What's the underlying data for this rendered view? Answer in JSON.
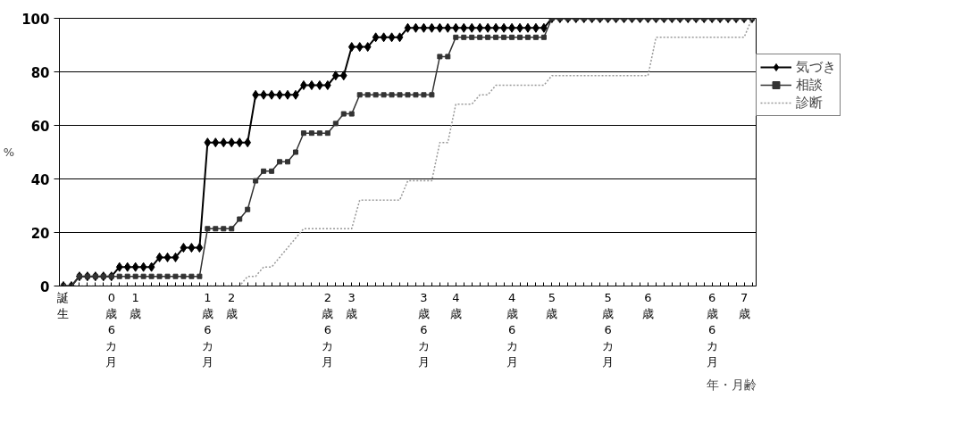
{
  "chart_data": {
    "type": "line",
    "ylabel": "%",
    "xlabel": "年・月齢",
    "categories": [
      "誕生",
      null,
      null,
      null,
      null,
      null,
      "0歳6カ月",
      null,
      null,
      "1歳",
      null,
      null,
      null,
      null,
      null,
      null,
      null,
      null,
      "1歳6カ月",
      null,
      null,
      "2歳",
      null,
      null,
      null,
      null,
      null,
      null,
      null,
      null,
      null,
      null,
      null,
      "2歳6カ月",
      null,
      null,
      "3歳",
      null,
      null,
      null,
      null,
      null,
      null,
      null,
      null,
      "3歳6カ月",
      null,
      null,
      null,
      "4歳",
      null,
      null,
      null,
      null,
      null,
      null,
      "4歳6カ月",
      null,
      null,
      null,
      null,
      "5歳",
      null,
      null,
      null,
      null,
      null,
      null,
      "5歳6カ月",
      null,
      null,
      null,
      null,
      "6歳",
      null,
      null,
      null,
      null,
      null,
      null,
      null,
      "6歳6カ月",
      null,
      null,
      null,
      "7歳",
      null
    ],
    "ylim": [
      0,
      100
    ],
    "yticks": [
      0,
      20,
      40,
      60,
      80,
      100
    ],
    "grid": "y",
    "legend": "right",
    "series": [
      {
        "name": "気づき",
        "color": "#000000",
        "marker": "diamond",
        "line_style": "solid",
        "values": [
          0,
          0,
          3.6,
          3.6,
          3.6,
          3.6,
          3.6,
          7.1,
          7.1,
          7.1,
          7.1,
          7.1,
          10.7,
          10.7,
          10.7,
          14.3,
          14.3,
          14.3,
          53.6,
          53.6,
          53.6,
          53.6,
          53.6,
          53.6,
          71.4,
          71.4,
          71.4,
          71.4,
          71.4,
          71.4,
          75,
          75,
          75,
          75,
          78.6,
          78.6,
          89.3,
          89.3,
          89.3,
          92.9,
          92.9,
          92.9,
          92.9,
          96.4,
          96.4,
          96.4,
          96.4,
          96.4,
          96.4,
          96.4,
          96.4,
          96.4,
          96.4,
          96.4,
          96.4,
          96.4,
          96.4,
          96.4,
          96.4,
          96.4,
          96.4,
          100,
          100,
          100,
          100,
          100,
          100,
          100,
          100,
          100,
          100,
          100,
          100,
          100,
          100,
          100,
          100,
          100,
          100,
          100,
          100,
          100,
          100,
          100,
          100,
          100,
          100
        ]
      },
      {
        "name": "相談",
        "color": "#333333",
        "marker": "square",
        "line_style": "solid",
        "values": [
          0,
          0,
          3.6,
          3.6,
          3.6,
          3.6,
          3.6,
          3.6,
          3.6,
          3.6,
          3.6,
          3.6,
          3.6,
          3.6,
          3.6,
          3.6,
          3.6,
          3.6,
          21.4,
          21.4,
          21.4,
          21.4,
          25,
          28.6,
          39.3,
          42.9,
          42.9,
          46.4,
          46.4,
          50,
          57.1,
          57.1,
          57.1,
          57.1,
          60.7,
          64.3,
          64.3,
          71.4,
          71.4,
          71.4,
          71.4,
          71.4,
          71.4,
          71.4,
          71.4,
          71.4,
          71.4,
          85.7,
          85.7,
          92.9,
          92.9,
          92.9,
          92.9,
          92.9,
          92.9,
          92.9,
          92.9,
          92.9,
          92.9,
          92.9,
          92.9,
          100,
          100,
          100,
          100,
          100,
          100,
          100,
          100,
          100,
          100,
          100,
          100,
          100,
          100,
          100,
          100,
          100,
          100,
          100,
          100,
          100,
          100,
          100,
          100,
          100,
          100
        ]
      },
      {
        "name": "診断",
        "color": "#999999",
        "marker": "none",
        "line_style": "dotted",
        "values": [
          0,
          0,
          0,
          0,
          0,
          0,
          0,
          0,
          0,
          0,
          0,
          0,
          0,
          0,
          0,
          0,
          0,
          0,
          0,
          0,
          0,
          0,
          0,
          3.6,
          3.6,
          7.1,
          7.1,
          10.7,
          14.3,
          17.9,
          21.4,
          21.4,
          21.4,
          21.4,
          21.4,
          21.4,
          21.4,
          32.1,
          32.1,
          32.1,
          32.1,
          32.1,
          32.1,
          39.3,
          39.3,
          39.3,
          39.3,
          53.6,
          53.6,
          67.9,
          67.9,
          67.9,
          71.4,
          71.4,
          75,
          75,
          75,
          75,
          75,
          75,
          75,
          78.6,
          78.6,
          78.6,
          78.6,
          78.6,
          78.6,
          78.6,
          78.6,
          78.6,
          78.6,
          78.6,
          78.6,
          78.6,
          92.9,
          92.9,
          92.9,
          92.9,
          92.9,
          92.9,
          92.9,
          92.9,
          92.9,
          92.9,
          92.9,
          92.9,
          100
        ]
      }
    ]
  }
}
